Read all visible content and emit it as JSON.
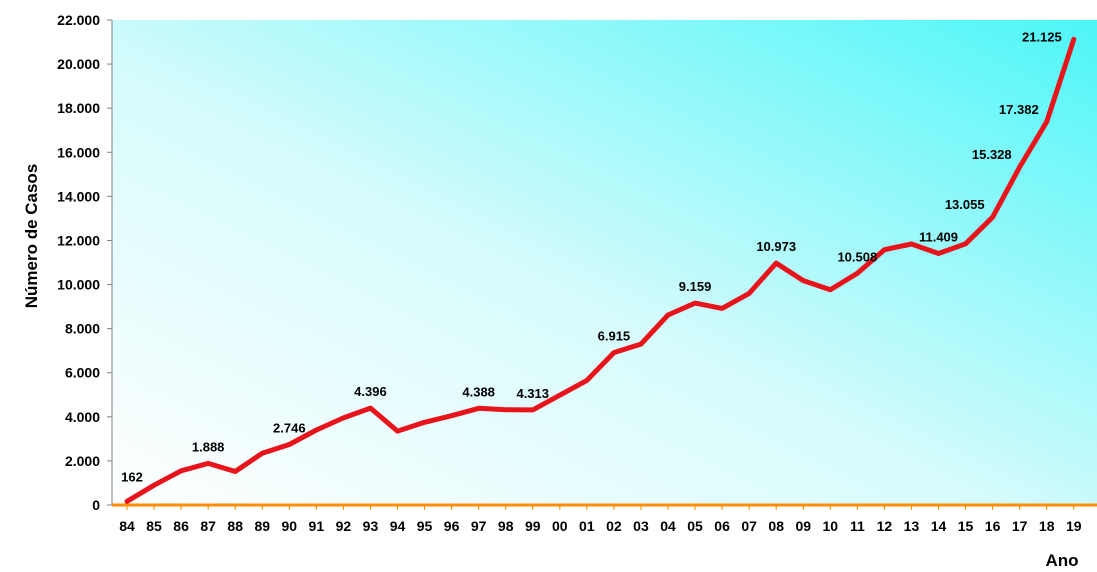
{
  "chart_data": {
    "type": "line",
    "title": "",
    "xlabel": "Ano",
    "ylabel": "Número de Casos",
    "ylim": [
      0,
      22000
    ],
    "grid": false,
    "y_ticks": [
      "0",
      "2.000",
      "4.000",
      "6.000",
      "8.000",
      "10.000",
      "12.000",
      "14.000",
      "16.000",
      "18.000",
      "20.000",
      "22.000"
    ],
    "y_tick_values": [
      0,
      2000,
      4000,
      6000,
      8000,
      10000,
      12000,
      14000,
      16000,
      18000,
      20000,
      22000
    ],
    "categories": [
      "84",
      "85",
      "86",
      "87",
      "88",
      "89",
      "90",
      "91",
      "92",
      "93",
      "94",
      "95",
      "96",
      "97",
      "98",
      "99",
      "00",
      "01",
      "02",
      "03",
      "04",
      "05",
      "06",
      "07",
      "08",
      "09",
      "10",
      "11",
      "12",
      "13",
      "14",
      "15",
      "16",
      "17",
      "18",
      "19"
    ],
    "series": [
      {
        "name": "",
        "values": [
          162,
          900,
          1550,
          1888,
          1520,
          2350,
          2746,
          3400,
          3950,
          4396,
          3350,
          3750,
          4050,
          4388,
          4320,
          4313,
          4980,
          5650,
          6915,
          7300,
          8620,
          9159,
          8920,
          9600,
          10973,
          10180,
          9760,
          10508,
          11580,
          11840,
          11409,
          11850,
          13055,
          15328,
          17382,
          21125
        ]
      }
    ],
    "data_labels": [
      {
        "index": 0,
        "text": "162"
      },
      {
        "index": 3,
        "text": "1.888"
      },
      {
        "index": 6,
        "text": "2.746"
      },
      {
        "index": 9,
        "text": "4.396"
      },
      {
        "index": 13,
        "text": "4.388"
      },
      {
        "index": 15,
        "text": "4.313"
      },
      {
        "index": 18,
        "text": "6.915"
      },
      {
        "index": 21,
        "text": "9.159"
      },
      {
        "index": 24,
        "text": "10.973"
      },
      {
        "index": 27,
        "text": "10.508"
      },
      {
        "index": 30,
        "text": "11.409"
      },
      {
        "index": 32,
        "text": "13.055"
      },
      {
        "index": 33,
        "text": "15.328"
      },
      {
        "index": 34,
        "text": "17.382"
      },
      {
        "index": 35,
        "text": "21.125"
      }
    ],
    "colors": {
      "line": "#e8141c",
      "axis": "#ff8c00",
      "bg_light": "#ffffff",
      "bg_accent": "#4df6f8"
    }
  }
}
